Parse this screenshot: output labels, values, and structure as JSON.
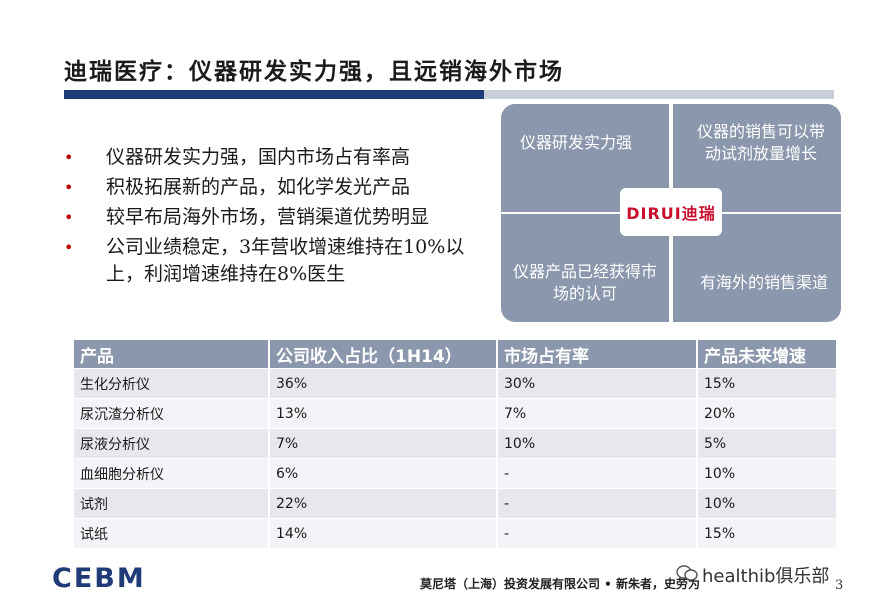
{
  "title": "迪瑞医疗：仪器研发实力强，且远销海外市场",
  "bullets": [
    "仪器研发实力强，国内市场占有率高",
    "积极拓展新的产品，如化学发光产品",
    "较早布局海外市场，营销渠道优势明显",
    "公司业绩稳定，3年营收增速维持在10%以上，利润增速维持在8%医生"
  ],
  "quadrant": {
    "top_left": "仪器研发实力强",
    "top_right": "仪器的销售可以带动试剂放量增长",
    "bottom_left": "仪器产品已经获得市场的认可",
    "bottom_right": "有海外的销售渠道",
    "logo": "DIRUI迪瑞"
  },
  "table": {
    "headers": [
      "产品",
      "公司收入占比（1H14）",
      "市场占有率",
      "产品未来增速"
    ],
    "rows": [
      [
        "生化分析仪",
        "36%",
        "30%",
        "15%"
      ],
      [
        "尿沉渣分析仪",
        "13%",
        "7%",
        "20%"
      ],
      [
        "尿液分析仪",
        "7%",
        "10%",
        "5%"
      ],
      [
        "血细胞分析仪",
        "6%",
        "-",
        "10%"
      ],
      [
        "试剂",
        "22%",
        "-",
        "10%"
      ],
      [
        "试纸",
        "14%",
        "-",
        "15%"
      ]
    ]
  },
  "footer": {
    "logo": "CEBM",
    "company": "莫尼塔（上海）投资发展有限公司 • 新朱者，史劳为",
    "watermark": "healthib俱乐部",
    "page": "3"
  },
  "colors": {
    "accent_dark": "#1f3b78",
    "panel_gray": "#8a97ac",
    "bullet_red": "#c00000"
  }
}
